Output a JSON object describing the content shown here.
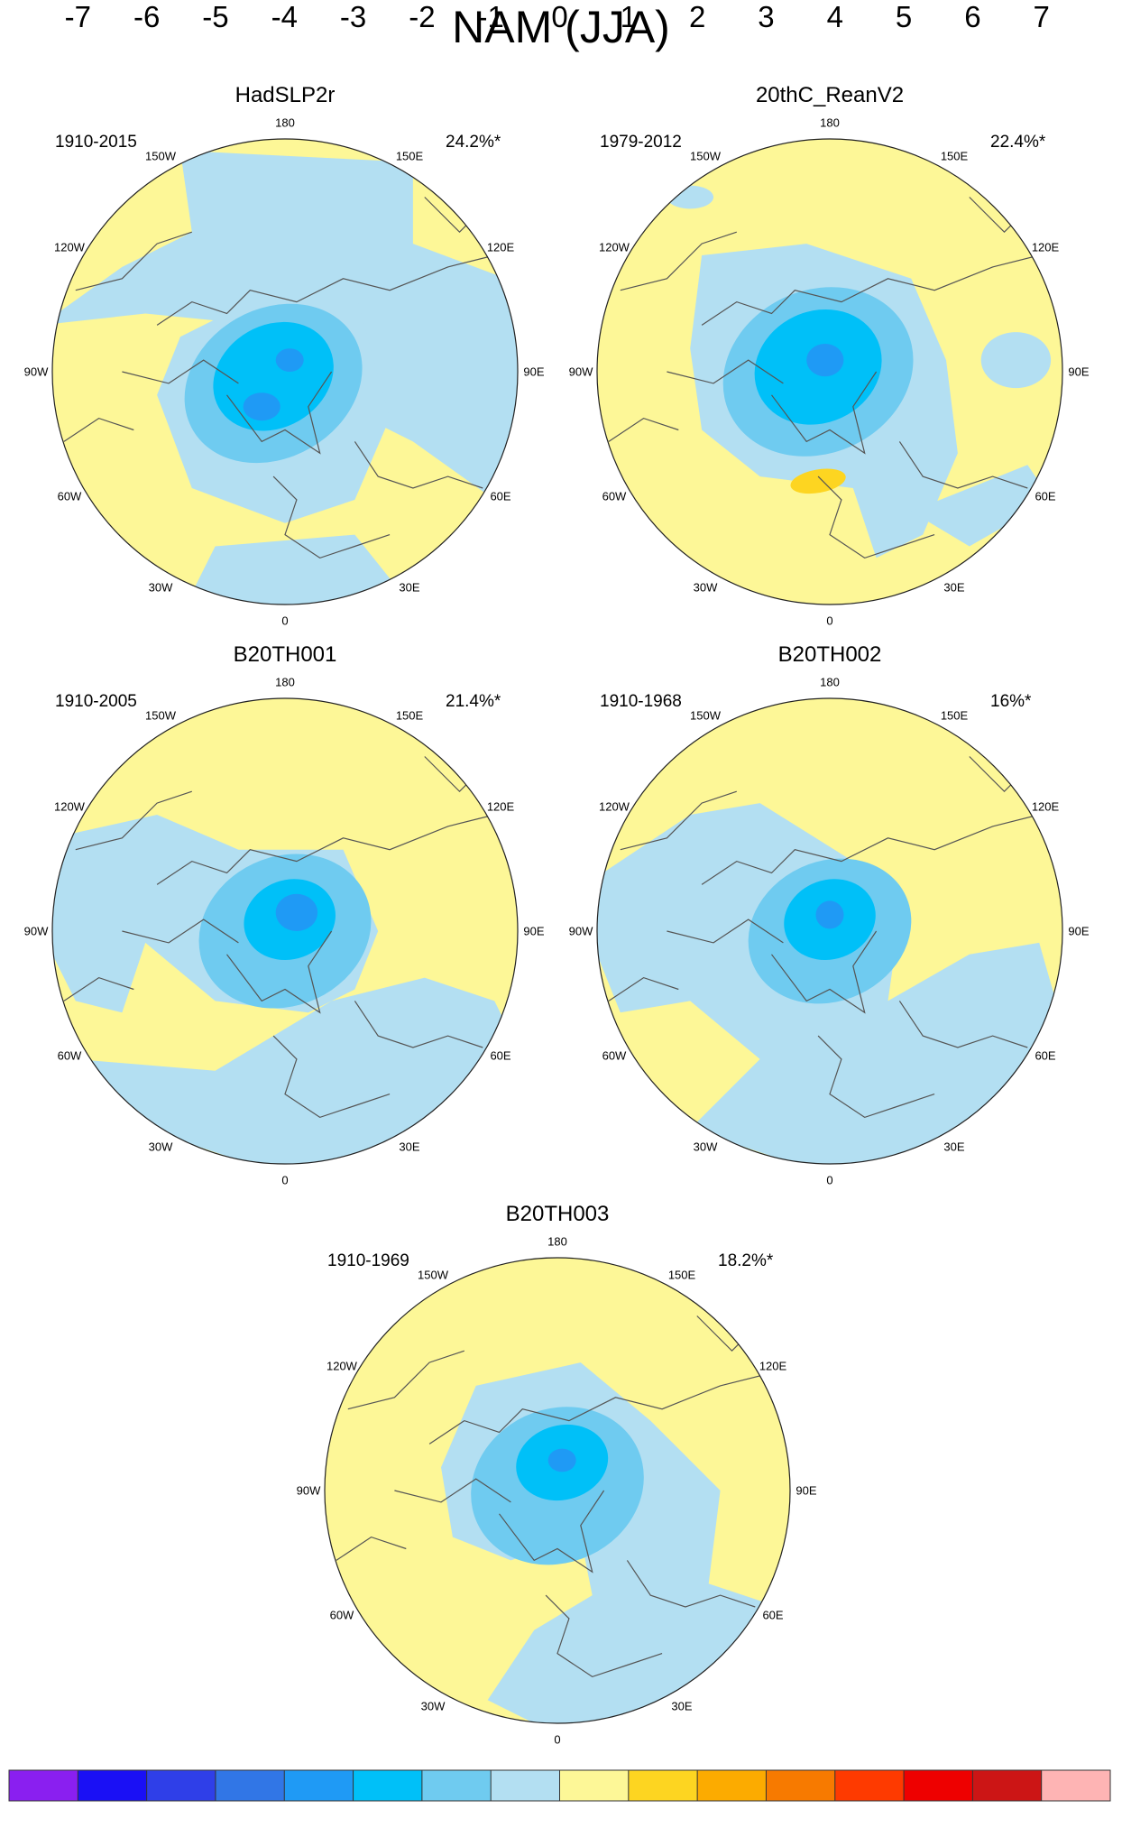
{
  "title": "NAM (JJA)",
  "longitude_labels": [
    "180",
    "150E",
    "120E",
    "90E",
    "60E",
    "30E",
    "0",
    "30W",
    "60W",
    "90W",
    "120W",
    "150W"
  ],
  "panels": [
    {
      "name": "HadSLP2r",
      "period": "1910-2015",
      "percent": "24.2%*"
    },
    {
      "name": "20thC_ReanV2",
      "period": "1979-2012",
      "percent": "22.4%*"
    },
    {
      "name": "B20TH001",
      "period": "1910-2005",
      "percent": "21.4%*"
    },
    {
      "name": "B20TH002",
      "period": "1910-1968",
      "percent": "16%*"
    },
    {
      "name": "B20TH003",
      "period": "1910-1969",
      "percent": "18.2%*"
    }
  ],
  "colorbar": {
    "labels": [
      "-7",
      "-6",
      "-5",
      "-4",
      "-3",
      "-2",
      "-1",
      "0",
      "1",
      "2",
      "3",
      "4",
      "5",
      "6",
      "7"
    ],
    "colors": [
      "#8a1ff0",
      "#1a10f5",
      "#2f3fe8",
      "#3176e6",
      "#1f9af5",
      "#00c0f8",
      "#6fcbf0",
      "#b3dff2",
      "#fdf797",
      "#fdd521",
      "#fcab00",
      "#f77a00",
      "#fe3a00",
      "#ee0000",
      "#cc1515",
      "#feb4b4"
    ]
  }
}
